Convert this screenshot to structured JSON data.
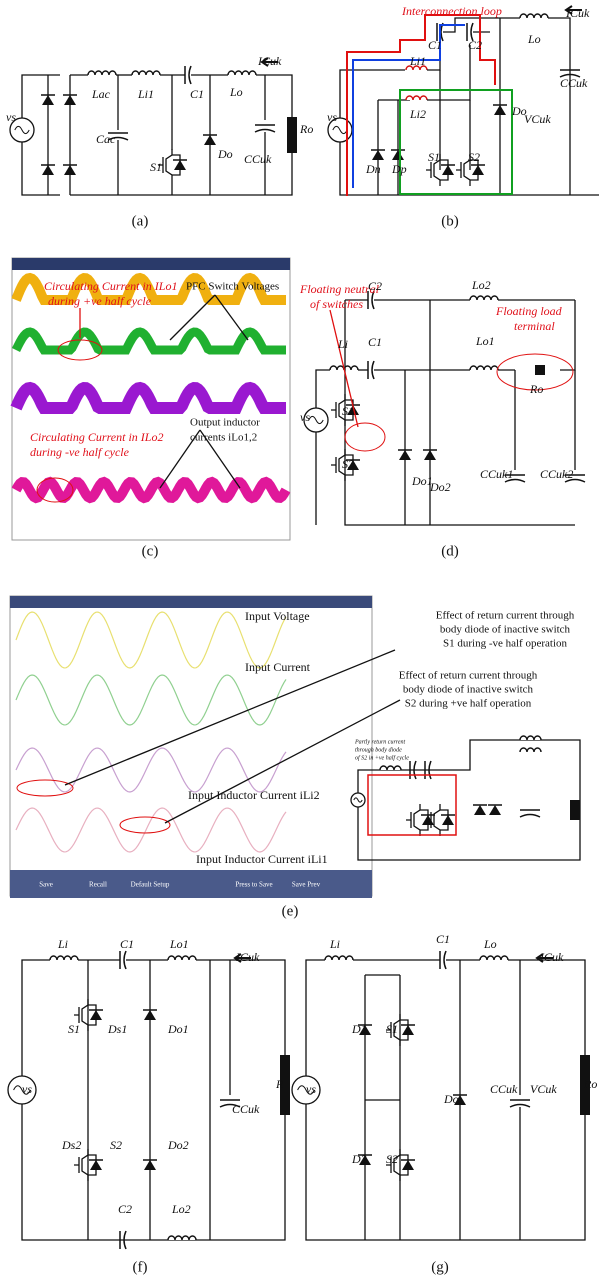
{
  "panels": [
    {
      "caption": "(a)",
      "labels": [
        "vs",
        "Lac",
        "Li1",
        "C1",
        "Lo",
        "ICuk",
        "Cac",
        "S1",
        "Do",
        "CCuk",
        "Ro"
      ]
    },
    {
      "caption": "(b)",
      "labels": [
        "Interconnection loop",
        "Li1",
        "Li2",
        "C1",
        "C2",
        "Lo",
        "ICuk",
        "CCuk",
        "VCuk",
        "Do",
        "Dn",
        "Dp",
        "S1",
        "S2",
        "vs"
      ]
    },
    {
      "caption": "(c)",
      "labels": [
        "Circulating Current in ILo1",
        "during +ve half cycle",
        "PFC Switch Voltages",
        "Circulating Current in ILo2",
        "during -ve half cycle",
        "Output inductor",
        "currents iLo1,2"
      ]
    },
    {
      "caption": "(d)",
      "labels": [
        "Floating neutral",
        "of switches",
        "Floating load",
        "terminal",
        "C2",
        "Lo2",
        "Li",
        "C1",
        "Lo1",
        "Ro",
        "vs",
        "S1",
        "S2",
        "Do1",
        "Do2",
        "CCuk1",
        "CCuk2"
      ]
    },
    {
      "caption": "(e)",
      "labels": [
        "Input Voltage",
        "Input Current",
        "Input Inductor Current iLi2",
        "Input Inductor Current iLi1",
        "Effect of return current through",
        "body diode of inactive switch",
        "S1 during -ve half operation",
        "Effect of return current through",
        "body diode of inactive switch",
        "S2 during +ve half operation",
        "Partly return current",
        "through body diode",
        "of S2 in +ve half cycle",
        "Save",
        "Recall",
        "Default Setup",
        "Press to Save",
        "Save Prev"
      ]
    },
    {
      "caption": "(f)",
      "labels": [
        "Li",
        "C1",
        "Lo1",
        "ICuk",
        "vs",
        "S1",
        "Ds1",
        "Do1",
        "CCuk",
        "R",
        "Ds2",
        "S2",
        "Do2",
        "C2",
        "Lo2"
      ]
    },
    {
      "caption": "(g)",
      "labels": [
        "Li",
        "C1",
        "Lo",
        "ICuk",
        "D1",
        "vs",
        "S1",
        "Do",
        "CCuk",
        "VCuk",
        "Ro",
        "D2",
        "S2"
      ]
    }
  ]
}
